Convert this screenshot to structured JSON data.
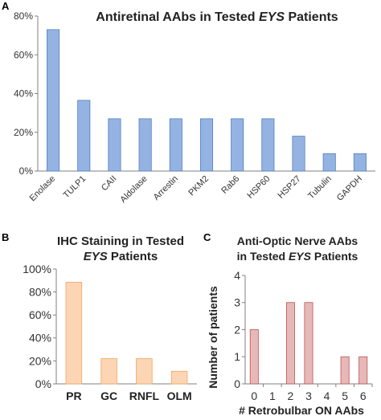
{
  "panels": {
    "a": "A",
    "b": "B",
    "c": "C"
  },
  "chart_data": [
    {
      "type": "bar",
      "title_parts": [
        "Antiretinal AAbs in Tested ",
        "EYS",
        " Patients"
      ],
      "categories": [
        "Enolase",
        "TULP1",
        "CAII",
        "Aldolase",
        "Arrestin",
        "PKM2",
        "Rab6",
        "HSP60",
        "HSP27",
        "Tubulin",
        "GAPDH"
      ],
      "values": [
        73,
        36.5,
        27,
        27,
        27,
        27,
        27,
        27,
        18,
        9,
        9
      ],
      "ylim": [
        0,
        80
      ],
      "yticks": [
        "0%",
        "20%",
        "40%",
        "60%",
        "80%"
      ],
      "bar_color": "#95b3e2",
      "bar_stroke": "#4f81bd",
      "grid": false,
      "legend": "none"
    },
    {
      "type": "bar",
      "title_line1": "IHC Staining in Tested",
      "title_line2_parts": [
        "EYS",
        " Patients"
      ],
      "categories": [
        "PR",
        "GC",
        "RNFL",
        "OLM"
      ],
      "values": [
        88.5,
        22,
        22,
        11
      ],
      "ylim": [
        0,
        100
      ],
      "yticks": [
        "0%",
        "20%",
        "40%",
        "60%",
        "80%",
        "100%"
      ],
      "bar_color": "#fcd5b4",
      "bar_stroke": "#f4a460",
      "grid": false,
      "legend": "none"
    },
    {
      "type": "bar",
      "title_line1": "Anti-Optic Nerve AAbs",
      "title_line2_parts": [
        "in Tested ",
        "EYS",
        " Patients"
      ],
      "categories": [
        "0",
        "1",
        "2",
        "3",
        "4",
        "5",
        "6"
      ],
      "values": [
        2,
        0,
        3,
        3,
        0,
        1,
        1
      ],
      "ylim": [
        0,
        4
      ],
      "yticks": [
        "0",
        "1",
        "2",
        "3",
        "4"
      ],
      "xlabel": "# Retrobulbar ON AAbs",
      "ylabel": "Number of patients",
      "bar_color": "#e6b9b8",
      "bar_stroke": "#c0504d",
      "grid": false,
      "legend": "none"
    }
  ]
}
